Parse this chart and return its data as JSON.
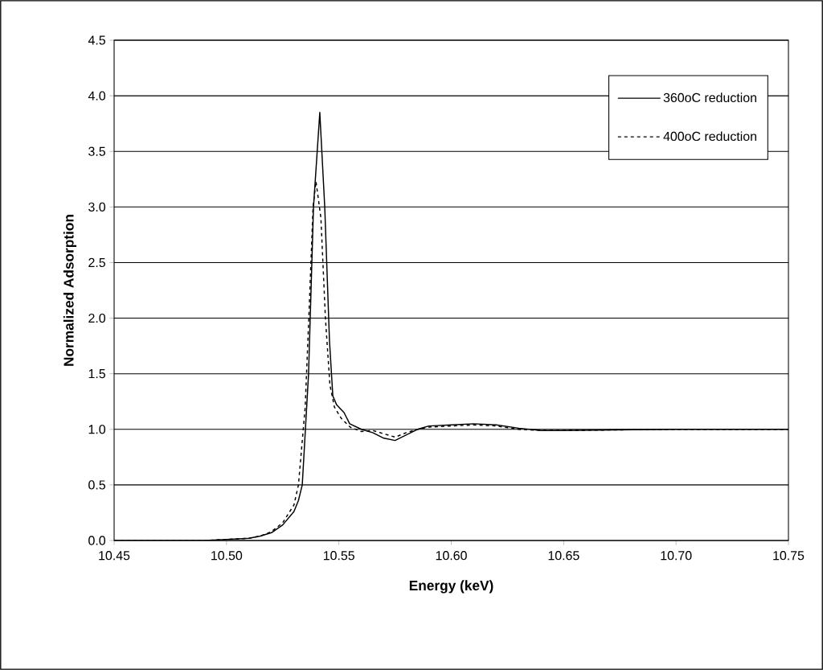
{
  "chart_data": {
    "type": "line",
    "xlabel": "Energy (keV)",
    "ylabel": "Normalized Adsorption",
    "xlim": [
      10.45,
      10.75
    ],
    "ylim": [
      0,
      4.5
    ],
    "xticks": [
      {
        "value": 10.45,
        "label": "10.45"
      },
      {
        "value": 10.5,
        "label": "10.50"
      },
      {
        "value": 10.55,
        "label": "10.55"
      },
      {
        "value": 10.6,
        "label": "10.60"
      },
      {
        "value": 10.65,
        "label": "10.65"
      },
      {
        "value": 10.7,
        "label": "10.70"
      },
      {
        "value": 10.75,
        "label": "10.75"
      }
    ],
    "yticks": [
      {
        "value": 0,
        "label": "0.0"
      },
      {
        "value": 0.5,
        "label": "0.5"
      },
      {
        "value": 1,
        "label": "1.0"
      },
      {
        "value": 1.5,
        "label": "1.5"
      },
      {
        "value": 2,
        "label": "2.0"
      },
      {
        "value": 2.5,
        "label": "2.5"
      },
      {
        "value": 3,
        "label": "3.0"
      },
      {
        "value": 3.5,
        "label": "3.5"
      },
      {
        "value": 4,
        "label": "4.0"
      },
      {
        "value": 4.5,
        "label": "4.5"
      }
    ],
    "grid": "y",
    "legend": "top right",
    "series": [
      {
        "name": "360oC reduction",
        "color": "#000000",
        "line_style": "solid",
        "x": [
          10.45,
          10.47,
          10.49,
          10.5,
          10.51,
          10.515,
          10.52,
          10.525,
          10.53,
          10.532,
          10.5337,
          10.5365,
          10.5387,
          10.5415,
          10.5437,
          10.5458,
          10.5473,
          10.549,
          10.5523,
          10.5548,
          10.56,
          10.565,
          10.57,
          10.575,
          10.58,
          10.585,
          10.59,
          10.6,
          10.61,
          10.62,
          10.63,
          10.64,
          10.65,
          10.7,
          10.75
        ],
        "values": [
          0.0,
          0.0,
          0.0,
          0.01,
          0.02,
          0.04,
          0.07,
          0.14,
          0.26,
          0.36,
          0.5,
          1.5,
          3.0,
          3.85,
          3.0,
          1.8,
          1.3,
          1.22,
          1.15,
          1.05,
          1.0,
          0.97,
          0.92,
          0.9,
          0.95,
          1.0,
          1.03,
          1.04,
          1.05,
          1.04,
          1.01,
          0.99,
          0.99,
          1.0,
          1.0
        ]
      },
      {
        "name": "400oC reduction",
        "color": "#000000",
        "line_style": "dashed",
        "x": [
          10.45,
          10.47,
          10.49,
          10.5,
          10.51,
          10.515,
          10.52,
          10.525,
          10.53,
          10.532,
          10.535,
          10.537,
          10.5385,
          10.5398,
          10.542,
          10.544,
          10.546,
          10.548,
          10.551,
          10.555,
          10.56,
          10.565,
          10.57,
          10.575,
          10.58,
          10.585,
          10.59,
          10.6,
          10.61,
          10.62,
          10.63,
          10.64,
          10.65,
          10.7,
          10.75
        ],
        "values": [
          0.0,
          0.0,
          0.0,
          0.01,
          0.02,
          0.04,
          0.08,
          0.16,
          0.32,
          0.5,
          1.2,
          2.2,
          3.0,
          3.23,
          2.9,
          2.0,
          1.4,
          1.2,
          1.1,
          1.02,
          0.98,
          0.99,
          0.96,
          0.93,
          0.97,
          1.0,
          1.02,
          1.03,
          1.04,
          1.03,
          1.0,
          0.99,
          0.99,
          1.0,
          1.0
        ]
      }
    ]
  }
}
